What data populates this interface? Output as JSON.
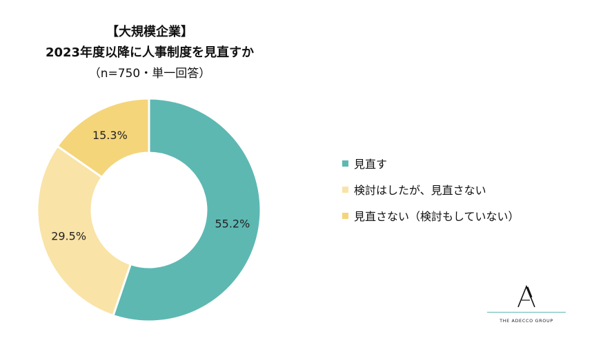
{
  "chart_data": {
    "type": "pie",
    "title": "【大規模企業】",
    "subtitle": "2023年度以降に人事制度を見直すか",
    "note": "（n=750・単一回答）",
    "series": [
      {
        "name": "見直す",
        "value": 55.2,
        "label": "55.2%",
        "color": "#5db8b2"
      },
      {
        "name": "検討はしたが、見直さない",
        "value": 29.5,
        "label": "29.5%",
        "color": "#f9e3a6"
      },
      {
        "name": "見直さない（検討もしていない）",
        "value": 15.3,
        "label": "15.3%",
        "color": "#f4d57a"
      }
    ],
    "legend_position": "right",
    "donut": true
  },
  "logo": {
    "text": "THE ADECCO GROUP"
  }
}
